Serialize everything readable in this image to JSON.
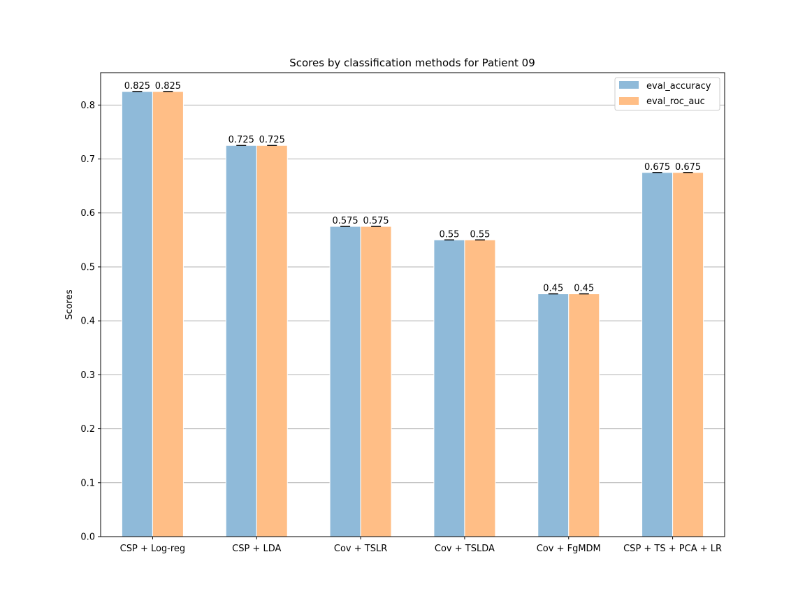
{
  "chart_data": {
    "type": "bar",
    "title": "Scores by classification methods for Patient 09",
    "xlabel": "",
    "ylabel": "Scores",
    "categories": [
      "CSP + Log-reg",
      "CSP + LDA",
      "Cov + TSLR",
      "Cov + TSLDA",
      "Cov + FgMDM",
      "CSP + TS + PCA + LR"
    ],
    "series": [
      {
        "name": "eval_accuracy",
        "values": [
          0.825,
          0.725,
          0.575,
          0.55,
          0.45,
          0.675
        ],
        "labels": [
          "0.825",
          "0.725",
          "0.575",
          "0.55",
          "0.45",
          "0.675"
        ],
        "color": "#8fbad9"
      },
      {
        "name": "eval_roc_auc",
        "values": [
          0.825,
          0.725,
          0.575,
          0.55,
          0.45,
          0.675
        ],
        "labels": [
          "0.825",
          "0.725",
          "0.575",
          "0.55",
          "0.45",
          "0.675"
        ],
        "color": "#ffbe86"
      }
    ],
    "ylim": [
      0,
      0.86
    ],
    "yticks": [
      "0.0",
      "0.1",
      "0.2",
      "0.3",
      "0.4",
      "0.5",
      "0.6",
      "0.7",
      "0.8"
    ],
    "grid": "horizontal",
    "legend": "top-right",
    "error_bars": true
  }
}
